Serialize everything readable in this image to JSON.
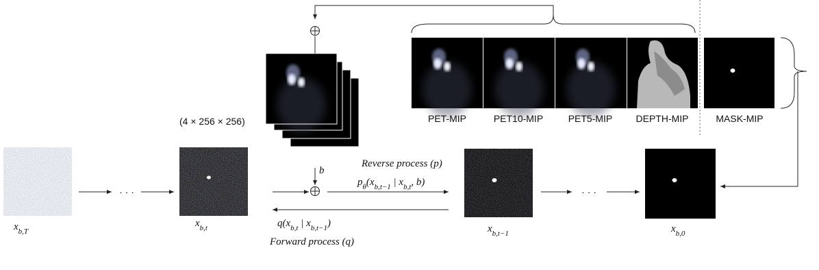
{
  "shape_note": "(4 × 256 × 256)",
  "stack_labels": [
    "PET-MIP",
    "PET10-MIP",
    "PET5-MIP",
    "DEPTH-MIP",
    "MASK-MIP"
  ],
  "states": [
    {
      "symbol": "x",
      "sub": "b,T"
    },
    {
      "symbol": "x",
      "sub": "b,t"
    },
    {
      "symbol": "x",
      "sub": "b,t−1"
    },
    {
      "symbol": "x",
      "sub": "b,0"
    }
  ],
  "condition": "b",
  "reverse": {
    "title": "Reverse process (p)",
    "formula": [
      {
        "text": "p",
        "sub": "θ"
      },
      {
        "text": "(x",
        "sub": "b,t−1"
      },
      {
        "text": " | x",
        "sub": "b,t"
      },
      {
        "text": ", b)"
      }
    ]
  },
  "forward": {
    "title": "Forward process (q)",
    "formula": [
      {
        "text": "q(x",
        "sub": "b,t"
      },
      {
        "text": " | x",
        "sub": "b,t−1"
      },
      {
        "text": ")"
      }
    ]
  },
  "ellipsis": "· · ·"
}
